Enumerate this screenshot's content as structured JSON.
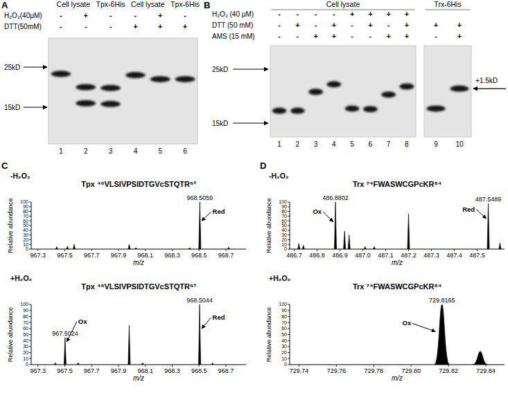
{
  "blots": [
    {
      "panel_label": "A",
      "lanes": [
        1,
        2,
        3,
        4,
        5,
        6
      ],
      "strips": [
        [
          1,
          2,
          3,
          4,
          5,
          6
        ]
      ],
      "groups": [
        {
          "text": "Cell lysate",
          "from": 1,
          "to": 2
        },
        {
          "text": "Tpx-6His",
          "from": 3,
          "to": 3
        },
        {
          "text": "Cell lysate",
          "from": 4,
          "to": 5
        },
        {
          "text": "Tpx-6His",
          "from": 6,
          "to": 6
        }
      ],
      "rows": [
        {
          "label": "H₂O₂(40μM)",
          "signs": [
            "-",
            "+",
            "-",
            "-",
            "+",
            "-"
          ]
        },
        {
          "label": "DTT(50mM)",
          "signs": [
            "-",
            "-",
            "-",
            "+",
            "+",
            "+"
          ]
        }
      ],
      "markers": [
        {
          "value": 25,
          "label": "25kD"
        },
        {
          "value": 15,
          "label": "15kD"
        }
      ],
      "bands": [
        {
          "lane": 1,
          "kd": 23.3
        },
        {
          "lane": 2,
          "kd": 20.0
        },
        {
          "lane": 2,
          "kd": 16.0
        },
        {
          "lane": 3,
          "kd": 19.8
        },
        {
          "lane": 3,
          "kd": 15.8
        },
        {
          "lane": 4,
          "kd": 23.0
        },
        {
          "lane": 5,
          "kd": 22.0
        },
        {
          "lane": 6,
          "kd": 22.0
        }
      ],
      "annotations": []
    },
    {
      "panel_label": "B",
      "lanes": [
        1,
        2,
        3,
        4,
        5,
        6,
        7,
        8,
        9,
        10
      ],
      "strips": [
        [
          1,
          2,
          3,
          4,
          5,
          6,
          7,
          8
        ],
        [
          9,
          10
        ]
      ],
      "groups": [
        {
          "text": "Cell lysate",
          "from": 1,
          "to": 8
        },
        {
          "text": "Trx-6His",
          "from": 9,
          "to": 10
        }
      ],
      "rows": [
        {
          "label": "H₂O₂ (40 μM)",
          "signs": [
            "-",
            "-",
            "-",
            "-",
            "+",
            "+",
            "+",
            "+",
            null,
            null
          ]
        },
        {
          "label": "DTT (50 mM)",
          "signs": [
            "-",
            "+",
            "-",
            "+",
            "-",
            "+",
            "-",
            "+",
            "+",
            "+"
          ]
        },
        {
          "label": "AMS (15 mM)",
          "signs": [
            "-",
            "-",
            "+",
            "+",
            "-",
            "-",
            "+",
            "+",
            "-",
            "+"
          ]
        }
      ],
      "markers": [
        {
          "value": 25,
          "label": "25kD"
        },
        {
          "value": 15,
          "label": "15kD"
        }
      ],
      "bands": [
        {
          "lane": 1,
          "kd": 17.3
        },
        {
          "lane": 2,
          "kd": 17.3
        },
        {
          "lane": 3,
          "kd": 20.8
        },
        {
          "lane": 4,
          "kd": 22.2
        },
        {
          "lane": 5,
          "kd": 17.7
        },
        {
          "lane": 6,
          "kd": 17.6
        },
        {
          "lane": 7,
          "kd": 20.3
        },
        {
          "lane": 8,
          "kd": 21.8
        },
        {
          "lane": 9,
          "kd": 17.7
        },
        {
          "lane": 10,
          "kd": 21.4
        }
      ],
      "annotations": [
        {
          "text": "+1.5kD",
          "lane": 10,
          "kd": 21.4
        }
      ]
    }
  ],
  "chart_data": [
    {
      "type": "spectrum",
      "panel_label": "C",
      "subtitle": "-H₂O₂",
      "title": "Tpx ⁴⁶VLSIVPSIDTGVcSTQTR⁶³",
      "x_label": "m/z",
      "y_label": "Relative abundance",
      "line_style": "centroid",
      "color": "#000000",
      "xlim": [
        967.25,
        968.85
      ],
      "xticks": [
        967.3,
        967.5,
        967.7,
        967.9,
        968.1,
        968.3,
        968.5,
        968.7
      ],
      "ylim": [
        0,
        100
      ],
      "yticks": [
        0,
        10,
        20,
        30,
        40,
        50,
        60,
        70,
        80,
        90,
        100
      ],
      "x": [
        967.44,
        967.52,
        967.57,
        967.98,
        968.03,
        968.43,
        968.5059,
        968.72
      ],
      "values": [
        5,
        6,
        10,
        10,
        3,
        3,
        100,
        4
      ],
      "annotations": [
        {
          "kind": "peak_label",
          "text": "968.5059",
          "x": 968.5059,
          "y": 100
        },
        {
          "kind": "arrow",
          "text": "Red",
          "x": 968.52,
          "y": 60,
          "at": [
            968.6,
            75
          ]
        }
      ]
    },
    {
      "type": "spectrum",
      "subtitle": "+H₂O₂",
      "title": "Tpx ⁴⁶VLSIVPSIDTGVcSTQTR⁶³",
      "x_label": "m/z",
      "y_label": "Relative abundance",
      "line_style": "centroid",
      "color": "#000000",
      "xlim": [
        967.25,
        968.85
      ],
      "xticks": [
        967.3,
        967.5,
        967.7,
        967.9,
        968.1,
        968.3,
        968.5,
        968.7
      ],
      "ylim": [
        0,
        100
      ],
      "yticks": [
        0,
        10,
        20,
        30,
        40,
        50,
        60,
        70,
        80,
        90,
        100
      ],
      "x": [
        967.43,
        967.5024,
        967.6,
        967.98,
        968.08,
        968.5044,
        968.6
      ],
      "values": [
        3,
        45,
        3,
        65,
        3,
        100,
        3
      ],
      "annotations": [
        {
          "kind": "peak_label",
          "text": "967.5024",
          "x": 967.5024,
          "y": 45
        },
        {
          "kind": "arrow",
          "text": "Ox",
          "x": 967.515,
          "y": 38,
          "at": [
            967.6,
            68
          ]
        },
        {
          "kind": "peak_label",
          "text": "968.5044",
          "x": 968.5044,
          "y": 100
        },
        {
          "kind": "arrow",
          "text": "Red",
          "x": 968.52,
          "y": 60,
          "at": [
            968.6,
            75
          ]
        }
      ]
    },
    {
      "type": "spectrum",
      "panel_label": "D",
      "subtitle": "-H₂O₂",
      "title": "Trx ⁷⁴FWASWCGPcKR⁸⁴",
      "x_label": "m/z",
      "y_label": "Relative abundance",
      "line_style": "centroid",
      "color": "#000000",
      "xlim": [
        486.68,
        487.62
      ],
      "xticks": [
        486.7,
        486.8,
        486.9,
        {
          "value": 487,
          "label": "487.0"
        },
        487.1,
        487.2,
        487.3,
        487.4,
        487.5
      ],
      "ylim": [
        0,
        100
      ],
      "yticks": [
        0,
        10,
        20,
        30,
        40,
        50,
        60,
        70,
        80,
        90,
        100
      ],
      "x": [
        486.72,
        486.74,
        486.8802,
        486.92,
        486.94,
        487.01,
        487.05,
        487.2,
        487.5489,
        487.6
      ],
      "values": [
        12,
        8,
        100,
        38,
        30,
        5,
        5,
        75,
        97,
        13
      ],
      "annotations": [
        {
          "kind": "peak_label",
          "text": "486.8802",
          "x": 486.8802,
          "y": 100
        },
        {
          "kind": "arrow",
          "text": "Ox",
          "x": 486.87,
          "y": 58,
          "at": [
            486.82,
            75
          ]
        },
        {
          "kind": "peak_label",
          "text": "487.5489",
          "x": 487.5489,
          "y": 97
        },
        {
          "kind": "arrow",
          "text": "Red",
          "x": 487.54,
          "y": 65,
          "at": [
            487.49,
            80
          ]
        }
      ]
    },
    {
      "type": "spectrum",
      "subtitle": "+H₂O₂",
      "title": "Trx ⁷⁴FWASWCGPcKR⁸⁴",
      "x_label": "m/z",
      "y_label": "Relative abundance",
      "line_style": "profile",
      "color": "#000000",
      "xlim": [
        729.735,
        729.85
      ],
      "xticks": [
        729.74,
        729.76,
        729.78,
        {
          "value": 729.8,
          "label": "729.80"
        },
        729.82,
        729.84
      ],
      "ylim": [
        0,
        100
      ],
      "yticks": [
        0,
        10,
        20,
        30,
        40,
        50,
        60,
        70,
        80,
        90,
        100
      ],
      "x": [
        729.8165,
        729.837
      ],
      "values": [
        100,
        22
      ],
      "annotations": [
        {
          "kind": "peak_label",
          "text": "729.8165",
          "x": 729.8165,
          "y": 100
        },
        {
          "kind": "arrow",
          "text": "Ox",
          "x": 729.813,
          "y": 55,
          "at": [
            729.8,
            65
          ]
        }
      ]
    }
  ]
}
